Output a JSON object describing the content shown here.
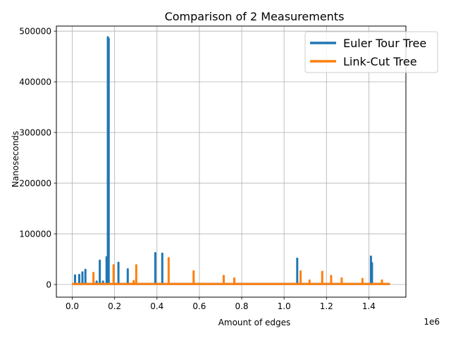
{
  "chart_data": {
    "type": "line",
    "title": "Comparison of 2 Measurements",
    "xlabel": "Amount of edges",
    "ylabel": "Nanoseconds",
    "x_offset_label": "1e6",
    "xlim": [
      -0.075,
      1.575
    ],
    "ylim": [
      -25000,
      510000
    ],
    "x_ticks": [
      0.0,
      0.2,
      0.4,
      0.6,
      0.8,
      1.0,
      1.2,
      1.4
    ],
    "x_tick_labels": [
      "0.0",
      "0.2",
      "0.4",
      "0.6",
      "0.8",
      "1.0",
      "1.2",
      "1.4"
    ],
    "y_ticks": [
      0,
      100000,
      200000,
      300000,
      400000,
      500000
    ],
    "y_tick_labels": [
      "0",
      "100000",
      "200000",
      "300000",
      "400000",
      "500000"
    ],
    "grid": true,
    "legend_position": "upper-right",
    "baseline": 1000,
    "x_range": [
      0.0,
      1.5
    ],
    "series": [
      {
        "name": "Euler Tour Tree",
        "color": "#1f77b4",
        "spikes": [
          [
            0.013,
            18000
          ],
          [
            0.033,
            19000
          ],
          [
            0.048,
            24000
          ],
          [
            0.062,
            29000
          ],
          [
            0.115,
            6000
          ],
          [
            0.13,
            47000
          ],
          [
            0.145,
            6000
          ],
          [
            0.162,
            54000
          ],
          [
            0.168,
            488000
          ],
          [
            0.172,
            485000
          ],
          [
            0.218,
            43000
          ],
          [
            0.262,
            30000
          ],
          [
            0.392,
            62000
          ],
          [
            0.425,
            61000
          ],
          [
            1.062,
            51000
          ],
          [
            1.41,
            55000
          ],
          [
            1.415,
            42000
          ]
        ]
      },
      {
        "name": "Link-Cut Tree",
        "color": "#ff7f0e",
        "spikes": [
          [
            0.1,
            23000
          ],
          [
            0.195,
            38000
          ],
          [
            0.29,
            7000
          ],
          [
            0.302,
            38000
          ],
          [
            0.455,
            52000
          ],
          [
            0.573,
            26000
          ],
          [
            0.715,
            17000
          ],
          [
            0.765,
            12000
          ],
          [
            1.078,
            26000
          ],
          [
            1.12,
            8000
          ],
          [
            1.18,
            25000
          ],
          [
            1.222,
            17000
          ],
          [
            1.272,
            12000
          ],
          [
            1.37,
            11000
          ],
          [
            1.462,
            8000
          ]
        ]
      }
    ]
  }
}
